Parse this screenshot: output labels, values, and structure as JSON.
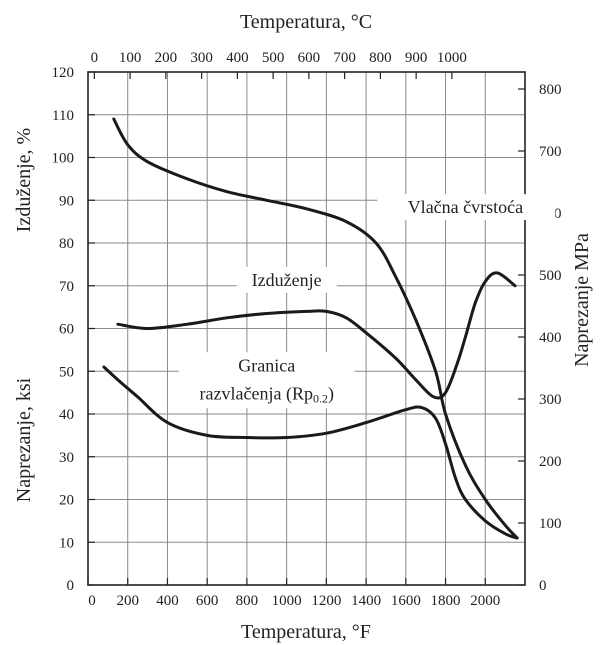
{
  "chart_data": {
    "type": "line",
    "x_bottom": {
      "label": "Temperatura, °F",
      "range": [
        0,
        2200
      ],
      "ticks": [
        0,
        200,
        400,
        600,
        800,
        1000,
        1200,
        1400,
        1600,
        1800,
        2000
      ]
    },
    "x_top": {
      "label": "Temperatura, °C",
      "ticks": [
        0,
        100,
        200,
        300,
        400,
        500,
        600,
        700,
        800,
        900,
        1000
      ]
    },
    "y_left_upper": {
      "label": "Izduženje, %",
      "ticks": [
        60,
        70,
        80,
        90,
        100,
        110,
        120
      ]
    },
    "y_left_lower": {
      "label": "Naprezanje, ksi",
      "ticks": [
        0,
        10,
        20,
        30,
        40,
        50
      ]
    },
    "y_left_scale": {
      "range": [
        0,
        120
      ]
    },
    "y_right": {
      "label": "Naprezanje MPa",
      "range": [
        0,
        827.4
      ],
      "ticks": [
        0,
        100,
        200,
        300,
        400,
        500,
        600,
        700,
        800
      ]
    },
    "grid": true,
    "series": [
      {
        "name": "Vlačna čvrstoća",
        "label_lines": [
          "Vlačna čvrstoća"
        ],
        "axis": "ksi",
        "points": [
          [
            130,
            109
          ],
          [
            200,
            103
          ],
          [
            300,
            99
          ],
          [
            500,
            95
          ],
          [
            700,
            92
          ],
          [
            900,
            90
          ],
          [
            1100,
            88
          ],
          [
            1300,
            85
          ],
          [
            1450,
            80
          ],
          [
            1550,
            72
          ],
          [
            1650,
            62
          ],
          [
            1750,
            50
          ],
          [
            1800,
            40
          ],
          [
            1900,
            28
          ],
          [
            2000,
            20
          ],
          [
            2100,
            14
          ],
          [
            2160,
            11
          ]
        ]
      },
      {
        "name": "Izduženje",
        "label_lines": [
          "Izduženje"
        ],
        "axis": "ksi",
        "points": [
          [
            150,
            61
          ],
          [
            300,
            60
          ],
          [
            500,
            61
          ],
          [
            700,
            62.5
          ],
          [
            900,
            63.5
          ],
          [
            1100,
            64
          ],
          [
            1200,
            64
          ],
          [
            1300,
            62.5
          ],
          [
            1400,
            59
          ],
          [
            1550,
            53
          ],
          [
            1650,
            48
          ],
          [
            1740,
            44
          ],
          [
            1800,
            45
          ],
          [
            1860,
            52
          ],
          [
            1900,
            58
          ],
          [
            1950,
            66
          ],
          [
            2000,
            71
          ],
          [
            2060,
            73
          ],
          [
            2150,
            70
          ]
        ]
      },
      {
        "name": "Granica razvlačenja (Rp0.2)",
        "label_lines": [
          "Granica",
          "razvlačenja (Rp",
          "0.2",
          ")"
        ],
        "axis": "ksi",
        "points": [
          [
            80,
            51
          ],
          [
            150,
            48
          ],
          [
            250,
            44
          ],
          [
            400,
            38
          ],
          [
            600,
            35
          ],
          [
            800,
            34.5
          ],
          [
            1000,
            34.5
          ],
          [
            1200,
            35.5
          ],
          [
            1400,
            38
          ],
          [
            1600,
            41
          ],
          [
            1680,
            41.5
          ],
          [
            1750,
            39
          ],
          [
            1800,
            33
          ],
          [
            1850,
            25
          ],
          [
            1900,
            20
          ],
          [
            2000,
            15
          ],
          [
            2100,
            12
          ],
          [
            2160,
            11
          ]
        ]
      }
    ]
  }
}
